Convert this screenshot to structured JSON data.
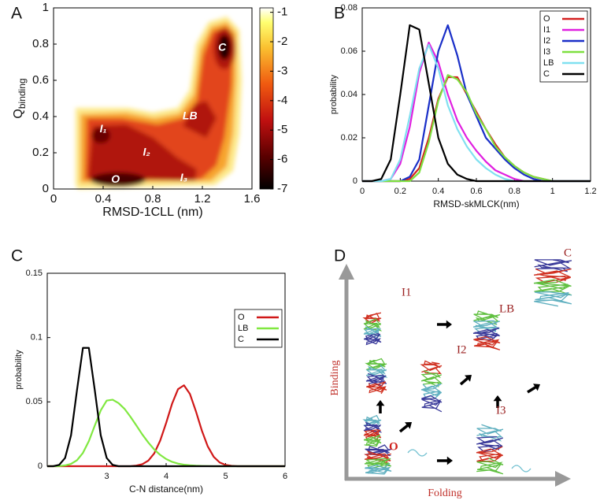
{
  "panel_labels": [
    "A",
    "B",
    "C",
    "D"
  ],
  "chart_data": [
    {
      "type": "heatmap",
      "x_label": "RMSD-1CLL (nm)",
      "y_label": "Q",
      "y_label_sub": "binding",
      "xlim": [
        0,
        1.6
      ],
      "xticks": [
        0,
        0.4,
        0.8,
        1.2,
        1.6
      ],
      "ylim": [
        0,
        1
      ],
      "yticks": [
        0,
        0.2,
        0.4,
        0.6,
        0.8,
        1
      ],
      "colorbar": {
        "lim": [
          -7,
          -0.85
        ],
        "ticks": [
          -1,
          -2,
          -3,
          -4,
          -5,
          -6,
          -7
        ]
      },
      "annotations": [
        {
          "text": "C",
          "x": 1.36,
          "y": 0.78
        },
        {
          "text": "LB",
          "x": 1.1,
          "y": 0.4
        },
        {
          "text": "I₁",
          "x": 0.4,
          "y": 0.33
        },
        {
          "text": "I₂",
          "x": 0.75,
          "y": 0.2
        },
        {
          "text": "I₃",
          "x": 1.05,
          "y": 0.06
        },
        {
          "text": "O",
          "x": 0.5,
          "y": 0.05
        }
      ]
    },
    {
      "type": "line",
      "x_label": "RMSD-skMLCK(nm)",
      "y_label": "probability",
      "xlim": [
        0,
        1.2
      ],
      "xticks": [
        0,
        0.2,
        0.4,
        0.6,
        0.8,
        1,
        1.2
      ],
      "ylim": [
        0,
        0.08
      ],
      "yticks": [
        0,
        0.02,
        0.04,
        0.06,
        0.08
      ],
      "legend": "upper right",
      "x": [
        0,
        0.05,
        0.1,
        0.15,
        0.2,
        0.25,
        0.3,
        0.35,
        0.4,
        0.45,
        0.5,
        0.55,
        0.6,
        0.65,
        0.7,
        0.75,
        0.8,
        0.85,
        0.9,
        0.95,
        1,
        1.05,
        1.1,
        1.15,
        1.2
      ],
      "series": [
        {
          "name": "O",
          "color": "#d42020",
          "values": [
            0,
            0,
            0,
            0,
            0,
            0.001,
            0.006,
            0.02,
            0.038,
            0.048,
            0.048,
            0.04,
            0.032,
            0.024,
            0.017,
            0.011,
            0.007,
            0.004,
            0.002,
            0.001,
            0,
            0,
            0,
            0,
            0
          ]
        },
        {
          "name": "I1",
          "color": "#e020e0",
          "values": [
            0,
            0,
            0,
            0.001,
            0.008,
            0.025,
            0.05,
            0.064,
            0.055,
            0.04,
            0.028,
            0.02,
            0.014,
            0.009,
            0.005,
            0.003,
            0.001,
            0,
            0,
            0,
            0,
            0,
            0,
            0,
            0
          ]
        },
        {
          "name": "I2",
          "color": "#1a2fc8",
          "values": [
            0,
            0,
            0,
            0,
            0,
            0.002,
            0.01,
            0.035,
            0.06,
            0.072,
            0.058,
            0.04,
            0.03,
            0.02,
            0.015,
            0.01,
            0.006,
            0.003,
            0.001,
            0,
            0,
            0,
            0,
            0,
            0
          ]
        },
        {
          "name": "I3",
          "color": "#7ee040",
          "values": [
            0,
            0,
            0,
            0,
            0,
            0,
            0.004,
            0.018,
            0.037,
            0.049,
            0.047,
            0.041,
            0.031,
            0.024,
            0.016,
            0.011,
            0.007,
            0.004,
            0.002,
            0.001,
            0,
            0,
            0,
            0,
            0
          ]
        },
        {
          "name": "LB",
          "color": "#80e0f0",
          "values": [
            0,
            0,
            0,
            0.001,
            0.01,
            0.03,
            0.052,
            0.063,
            0.052,
            0.035,
            0.024,
            0.016,
            0.01,
            0.006,
            0.003,
            0.001,
            0,
            0,
            0,
            0,
            0,
            0,
            0,
            0,
            0
          ]
        },
        {
          "name": "C",
          "color": "#000000",
          "values": [
            0,
            0,
            0.001,
            0.01,
            0.04,
            0.072,
            0.07,
            0.045,
            0.02,
            0.008,
            0.003,
            0.001,
            0,
            0,
            0,
            0,
            0,
            0,
            0,
            0,
            0,
            0,
            0,
            0,
            0
          ]
        }
      ]
    },
    {
      "type": "line",
      "x_label": "C-N distance(nm)",
      "y_label": "probability",
      "xlim": [
        2,
        6
      ],
      "xticks": [
        3,
        4,
        5,
        6
      ],
      "ylim": [
        0,
        0.15
      ],
      "yticks": [
        0,
        0.05,
        0.1,
        0.15
      ],
      "legend": "upper right",
      "x": [
        2,
        2.1,
        2.2,
        2.3,
        2.4,
        2.5,
        2.6,
        2.7,
        2.8,
        2.9,
        3,
        3.1,
        3.2,
        3.3,
        3.4,
        3.5,
        3.6,
        3.7,
        3.8,
        3.9,
        4,
        4.1,
        4.2,
        4.3,
        4.4,
        4.5,
        4.6,
        4.7,
        4.8,
        4.9,
        5,
        5.1,
        5.2,
        5.3,
        5.4,
        5.5,
        5.6,
        5.7,
        5.8,
        5.9,
        6
      ],
      "series": [
        {
          "name": "O",
          "color": "#d01818",
          "values": [
            0,
            0,
            0,
            0,
            0,
            0,
            0,
            0,
            0,
            0,
            0,
            0,
            0,
            0,
            0,
            0.0005,
            0.0016,
            0.0043,
            0.01,
            0.0199,
            0.0336,
            0.0486,
            0.0599,
            0.0629,
            0.0562,
            0.0428,
            0.0278,
            0.0154,
            0.0073,
            0.0029,
            0.001,
            0.0003,
            0,
            0,
            0,
            0,
            0,
            0,
            0,
            0,
            0
          ]
        },
        {
          "name": "LB",
          "color": "#80e840",
          "values": [
            0,
            0,
            0.0001,
            0.0006,
            0.0018,
            0.0046,
            0.0103,
            0.0195,
            0.0316,
            0.0434,
            0.051,
            0.0517,
            0.049,
            0.0446,
            0.0384,
            0.0316,
            0.0246,
            0.0184,
            0.013,
            0.0088,
            0.0056,
            0.0034,
            0.002,
            0.0012,
            0.0007,
            0.0004,
            0.0002,
            0.0001,
            0,
            0,
            0,
            0,
            0,
            0,
            0,
            0,
            0,
            0,
            0,
            0,
            0
          ]
        },
        {
          "name": "C",
          "color": "#000000",
          "values": [
            0,
            0,
            0.001,
            0.0064,
            0.024,
            0.059,
            0.092,
            0.092,
            0.059,
            0.024,
            0.0064,
            0.001,
            0,
            0,
            0,
            0,
            0,
            0,
            0,
            0,
            0,
            0,
            0,
            0,
            0,
            0,
            0,
            0,
            0,
            0,
            0,
            0,
            0,
            0,
            0,
            0,
            0,
            0,
            0,
            0,
            0
          ]
        }
      ]
    }
  ],
  "diagram": {
    "y_axis": "Binding",
    "x_axis": "Folding",
    "states": [
      "O",
      "I1",
      "I2",
      "I3",
      "LB",
      "C"
    ]
  }
}
